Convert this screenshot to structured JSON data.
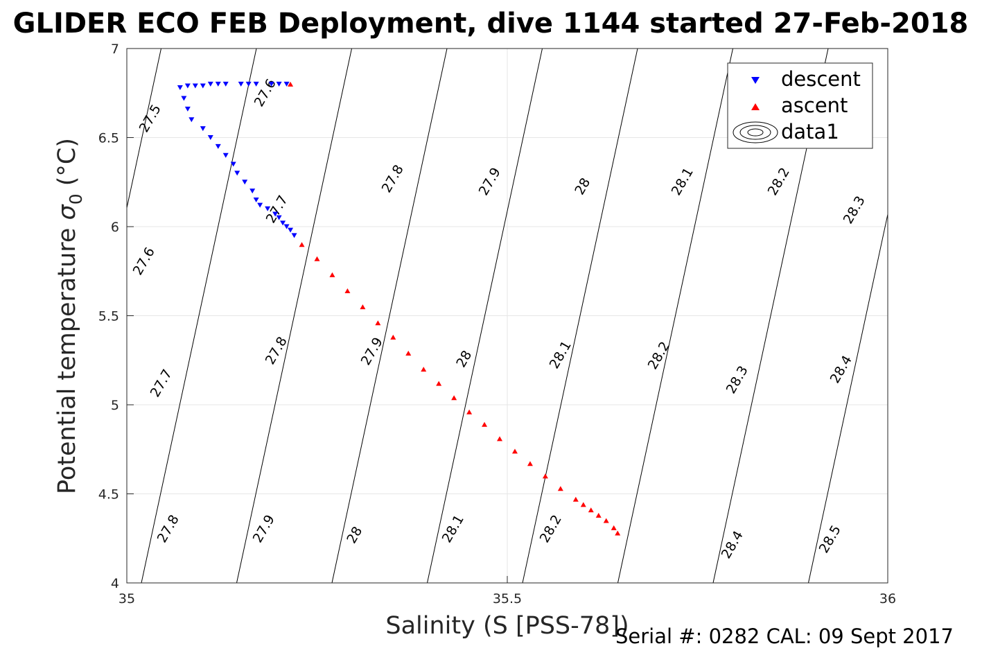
{
  "chart_data": {
    "type": "scatter",
    "title": "GLIDER ECO FEB Deployment, dive 1144 started 27-Feb-2018",
    "xlabel": "Salinity (S [PSS-78])",
    "ylabel_prefix": "Potential temperature ",
    "ylabel_sigma": "σ",
    "ylabel_sub": "0",
    "ylabel_suffix": " (°C)",
    "footer": "Serial #: 0282  CAL: 09 Sept 2017",
    "xlim": [
      35,
      36
    ],
    "ylim": [
      4,
      7
    ],
    "xticks": [
      "35",
      "35.5",
      "36"
    ],
    "yticks": [
      "4",
      "4.5",
      "5",
      "5.5",
      "6",
      "6.5",
      "7"
    ],
    "grid": true,
    "legend_placement": "top-right",
    "legend": [
      {
        "label": "descent",
        "marker": "triangle-down",
        "color": "#0000ff"
      },
      {
        "label": "ascent",
        "marker": "triangle-up",
        "color": "#ff0000"
      },
      {
        "label": "data1",
        "marker": "contour",
        "color": "#000000"
      }
    ],
    "contour_labels": [
      "27.5",
      "27.6",
      "27.6",
      "27.7",
      "27.7",
      "27.8",
      "27.8",
      "27.8",
      "27.9",
      "27.9",
      "27.9",
      "28",
      "28",
      "28",
      "28.1",
      "28.1",
      "28.1",
      "28.2",
      "28.2",
      "28.2",
      "28.3",
      "28.3",
      "28.4",
      "28.4",
      "28.5"
    ],
    "series": [
      {
        "name": "descent",
        "color": "#0000ff",
        "marker": "triangle-down",
        "x": [
          35.21,
          35.2,
          35.19,
          35.17,
          35.16,
          35.15,
          35.13,
          35.12,
          35.11,
          35.1,
          35.09,
          35.08,
          35.07,
          35.075,
          35.08,
          35.085,
          35.1,
          35.11,
          35.12,
          35.13,
          35.14,
          35.145,
          35.155,
          35.165,
          35.17,
          35.175,
          35.185,
          35.195,
          35.2,
          35.205,
          35.21,
          35.215,
          35.22
        ],
        "y": [
          6.8,
          6.8,
          6.8,
          6.8,
          6.8,
          6.8,
          6.8,
          6.8,
          6.8,
          6.79,
          6.79,
          6.79,
          6.78,
          6.72,
          6.66,
          6.6,
          6.55,
          6.5,
          6.45,
          6.4,
          6.35,
          6.3,
          6.25,
          6.2,
          6.15,
          6.12,
          6.1,
          6.07,
          6.05,
          6.02,
          6.0,
          5.98,
          5.95
        ]
      },
      {
        "name": "ascent",
        "color": "#ff0000",
        "marker": "triangle-up",
        "x": [
          35.215,
          35.23,
          35.25,
          35.27,
          35.29,
          35.31,
          35.33,
          35.35,
          35.37,
          35.39,
          35.41,
          35.43,
          35.45,
          35.47,
          35.49,
          35.51,
          35.53,
          35.55,
          35.57,
          35.59,
          35.6,
          35.61,
          35.62,
          35.63,
          35.64,
          35.645
        ],
        "y": [
          6.8,
          5.9,
          5.82,
          5.73,
          5.64,
          5.55,
          5.46,
          5.38,
          5.29,
          5.2,
          5.12,
          5.04,
          4.96,
          4.89,
          4.81,
          4.74,
          4.67,
          4.6,
          4.53,
          4.47,
          4.44,
          4.41,
          4.38,
          4.35,
          4.31,
          4.28
        ]
      }
    ]
  }
}
